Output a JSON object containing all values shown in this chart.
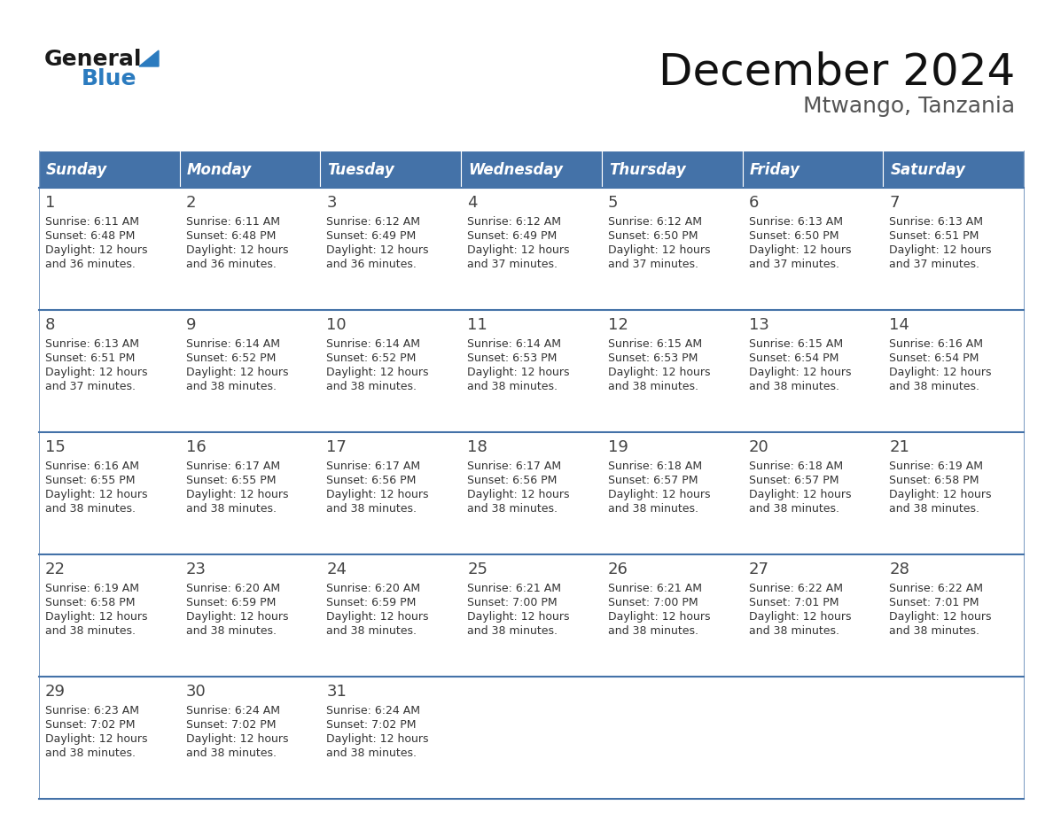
{
  "title": "December 2024",
  "subtitle": "Mtwango, Tanzania",
  "days_of_week": [
    "Sunday",
    "Monday",
    "Tuesday",
    "Wednesday",
    "Thursday",
    "Friday",
    "Saturday"
  ],
  "header_bg": "#4472a8",
  "header_text_color": "#ffffff",
  "row_bg": "#ffffff",
  "border_color": "#4472a8",
  "text_color": "#333333",
  "day_number_color": "#444444",
  "calendar_data": [
    [
      {
        "day": "1",
        "sunrise": "6:11 AM",
        "sunset": "6:48 PM",
        "daylight_min": "36"
      },
      {
        "day": "2",
        "sunrise": "6:11 AM",
        "sunset": "6:48 PM",
        "daylight_min": "36"
      },
      {
        "day": "3",
        "sunrise": "6:12 AM",
        "sunset": "6:49 PM",
        "daylight_min": "36"
      },
      {
        "day": "4",
        "sunrise": "6:12 AM",
        "sunset": "6:49 PM",
        "daylight_min": "37"
      },
      {
        "day": "5",
        "sunrise": "6:12 AM",
        "sunset": "6:50 PM",
        "daylight_min": "37"
      },
      {
        "day": "6",
        "sunrise": "6:13 AM",
        "sunset": "6:50 PM",
        "daylight_min": "37"
      },
      {
        "day": "7",
        "sunrise": "6:13 AM",
        "sunset": "6:51 PM",
        "daylight_min": "37"
      }
    ],
    [
      {
        "day": "8",
        "sunrise": "6:13 AM",
        "sunset": "6:51 PM",
        "daylight_min": "37"
      },
      {
        "day": "9",
        "sunrise": "6:14 AM",
        "sunset": "6:52 PM",
        "daylight_min": "38"
      },
      {
        "day": "10",
        "sunrise": "6:14 AM",
        "sunset": "6:52 PM",
        "daylight_min": "38"
      },
      {
        "day": "11",
        "sunrise": "6:14 AM",
        "sunset": "6:53 PM",
        "daylight_min": "38"
      },
      {
        "day": "12",
        "sunrise": "6:15 AM",
        "sunset": "6:53 PM",
        "daylight_min": "38"
      },
      {
        "day": "13",
        "sunrise": "6:15 AM",
        "sunset": "6:54 PM",
        "daylight_min": "38"
      },
      {
        "day": "14",
        "sunrise": "6:16 AM",
        "sunset": "6:54 PM",
        "daylight_min": "38"
      }
    ],
    [
      {
        "day": "15",
        "sunrise": "6:16 AM",
        "sunset": "6:55 PM",
        "daylight_min": "38"
      },
      {
        "day": "16",
        "sunrise": "6:17 AM",
        "sunset": "6:55 PM",
        "daylight_min": "38"
      },
      {
        "day": "17",
        "sunrise": "6:17 AM",
        "sunset": "6:56 PM",
        "daylight_min": "38"
      },
      {
        "day": "18",
        "sunrise": "6:17 AM",
        "sunset": "6:56 PM",
        "daylight_min": "38"
      },
      {
        "day": "19",
        "sunrise": "6:18 AM",
        "sunset": "6:57 PM",
        "daylight_min": "38"
      },
      {
        "day": "20",
        "sunrise": "6:18 AM",
        "sunset": "6:57 PM",
        "daylight_min": "38"
      },
      {
        "day": "21",
        "sunrise": "6:19 AM",
        "sunset": "6:58 PM",
        "daylight_min": "38"
      }
    ],
    [
      {
        "day": "22",
        "sunrise": "6:19 AM",
        "sunset": "6:58 PM",
        "daylight_min": "38"
      },
      {
        "day": "23",
        "sunrise": "6:20 AM",
        "sunset": "6:59 PM",
        "daylight_min": "38"
      },
      {
        "day": "24",
        "sunrise": "6:20 AM",
        "sunset": "6:59 PM",
        "daylight_min": "38"
      },
      {
        "day": "25",
        "sunrise": "6:21 AM",
        "sunset": "7:00 PM",
        "daylight_min": "38"
      },
      {
        "day": "26",
        "sunrise": "6:21 AM",
        "sunset": "7:00 PM",
        "daylight_min": "38"
      },
      {
        "day": "27",
        "sunrise": "6:22 AM",
        "sunset": "7:01 PM",
        "daylight_min": "38"
      },
      {
        "day": "28",
        "sunrise": "6:22 AM",
        "sunset": "7:01 PM",
        "daylight_min": "38"
      }
    ],
    [
      {
        "day": "29",
        "sunrise": "6:23 AM",
        "sunset": "7:02 PM",
        "daylight_min": "38"
      },
      {
        "day": "30",
        "sunrise": "6:24 AM",
        "sunset": "7:02 PM",
        "daylight_min": "38"
      },
      {
        "day": "31",
        "sunrise": "6:24 AM",
        "sunset": "7:02 PM",
        "daylight_min": "38"
      },
      null,
      null,
      null,
      null
    ]
  ],
  "logo_general_color": "#1a1a1a",
  "logo_blue_color": "#2b7bbf",
  "logo_triangle_color": "#2b7bbf",
  "title_fontsize": 36,
  "subtitle_fontsize": 18,
  "header_fontsize": 12,
  "day_num_fontsize": 13,
  "cell_text_fontsize": 9
}
